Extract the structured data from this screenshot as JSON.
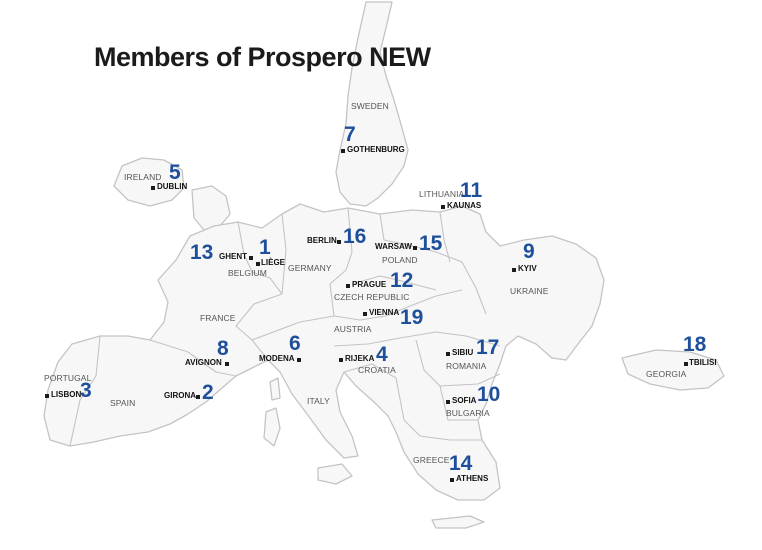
{
  "title": "Members of Prospero NEW",
  "countries": [
    "SWEDEN",
    "IRELAND",
    "LITHUANIA",
    "BELGIUM",
    "GERMANY",
    "POLAND",
    "CZECH REPUBLIC",
    "AUSTRIA",
    "UKRAINE",
    "FRANCE",
    "PORTUGAL",
    "SPAIN",
    "CROATIA",
    "ITALY",
    "ROMANIA",
    "BULGARIA",
    "GREECE",
    "GEORGIA"
  ],
  "members": [
    {
      "number": "1",
      "city": "LIÈGE"
    },
    {
      "number": "2",
      "city": "GIRONA"
    },
    {
      "number": "3",
      "city": "LISBON"
    },
    {
      "number": "4",
      "city": "RIJEKA"
    },
    {
      "number": "5",
      "city": "DUBLIN"
    },
    {
      "number": "6",
      "city": "MODENA"
    },
    {
      "number": "7",
      "city": "GOTHENBURG"
    },
    {
      "number": "8",
      "city": "AVIGNON"
    },
    {
      "number": "9",
      "city": "KYIV"
    },
    {
      "number": "10",
      "city": "SOFIA"
    },
    {
      "number": "11",
      "city": "KAUNAS"
    },
    {
      "number": "12",
      "city": "PRAGUE"
    },
    {
      "number": "13",
      "city": "GHENT"
    },
    {
      "number": "14",
      "city": "ATHENS"
    },
    {
      "number": "16",
      "city": "BERLIN"
    },
    {
      "number": "15",
      "city": "WARSAW"
    },
    {
      "number": "17",
      "city": "SIBIU"
    },
    {
      "number": "18",
      "city": "TBILISI"
    },
    {
      "number": "19",
      "city": "VIENNA"
    }
  ]
}
